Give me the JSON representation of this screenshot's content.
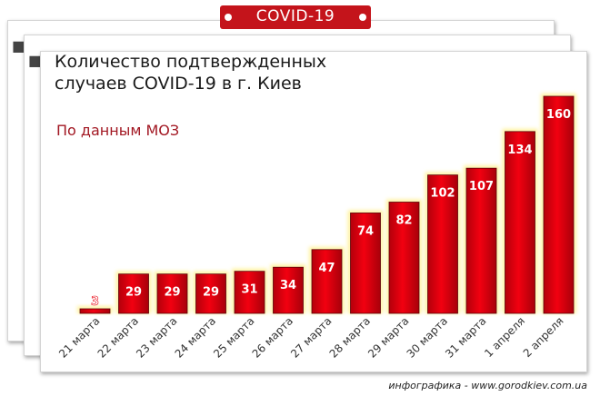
{
  "badge": {
    "label": "COVID-19"
  },
  "title_lines": [
    "Количество подтвержденных",
    "случаев COVID-19 в г. Киев"
  ],
  "subtitle": "По данным МОЗ",
  "credit": "инфографика - www.gorodkiev.com.ua",
  "colors": {
    "bar": "#e8000d",
    "bar_dark": "#a8000a",
    "glow": "#fff3a0",
    "accent": "#c4141b",
    "subtitle": "#a21722"
  },
  "chart_data": {
    "type": "bar",
    "title": "Количество подтвержденных случаев COVID-19 в г. Киев",
    "subtitle": "По данным МОЗ",
    "categories": [
      "21 марта",
      "22 марта",
      "23 марта",
      "24 марта",
      "25 марта",
      "26 марта",
      "27 марта",
      "28 марта",
      "29 марта",
      "30 марта",
      "31 марта",
      "1 апреля",
      "2 апреля"
    ],
    "values": [
      3,
      29,
      29,
      29,
      31,
      34,
      47,
      74,
      82,
      102,
      107,
      134,
      160
    ],
    "data_labels": true,
    "ylim": [
      0,
      160
    ],
    "grid": false,
    "legend": "none"
  }
}
